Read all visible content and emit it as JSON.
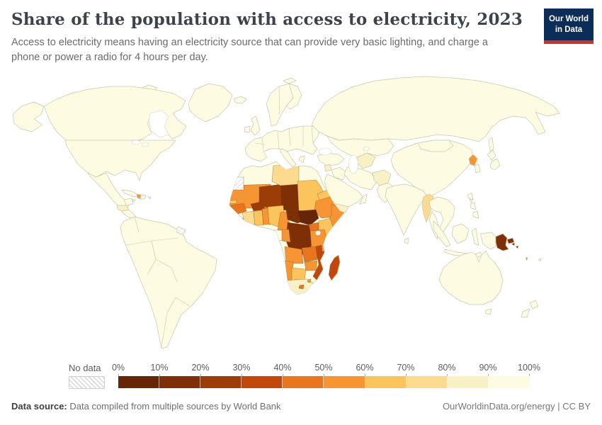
{
  "header": {
    "title": "Share of the population with access to electricity, 2023",
    "subtitle": "Access to electricity means having an electricity source that can provide very basic lighting, and charge a phone or power a radio for 4 hours per day.",
    "logo": {
      "line1": "Our World",
      "line2": "in Data",
      "bg_color": "#0d2d59",
      "accent_color": "#cc3230"
    }
  },
  "legend": {
    "no_data_label": "No data",
    "ticks": [
      "0%",
      "10%",
      "20%",
      "30%",
      "40%",
      "50%",
      "60%",
      "70%",
      "80%",
      "90%",
      "100%"
    ],
    "bin_colors": [
      "#662506",
      "#7e2f05",
      "#9c3d08",
      "#c2470a",
      "#e8761f",
      "#f79433",
      "#fcc45d",
      "#fcda8e",
      "#f8f1c5",
      "#fdfce3"
    ],
    "no_data_pattern": "gray-diagonal-hatch"
  },
  "footer": {
    "source_label": "Data source:",
    "source_text": "Data compiled from multiple sources by World Bank",
    "credit_text": "OurWorldinData.org/energy | CC BY"
  },
  "chart_data": {
    "type": "heatmap",
    "subtype": "world-choropleth-map",
    "title": "Share of the population with access to electricity, 2023",
    "year": 2023,
    "unit": "share of population with access to electricity (%)",
    "legend_position": "bottom",
    "bins": [
      {
        "range": "0-10%",
        "color": "#662506"
      },
      {
        "range": "10-20%",
        "color": "#7e2f05"
      },
      {
        "range": "20-30%",
        "color": "#9c3d08"
      },
      {
        "range": "30-40%",
        "color": "#c2470a"
      },
      {
        "range": "40-50%",
        "color": "#e8761f"
      },
      {
        "range": "50-60%",
        "color": "#f79433"
      },
      {
        "range": "60-70%",
        "color": "#fcc45d"
      },
      {
        "range": "70-80%",
        "color": "#fcda8e"
      },
      {
        "range": "80-90%",
        "color": "#f8f1c5"
      },
      {
        "range": "90-100%",
        "color": "#fdfce3"
      },
      {
        "range": "No data",
        "color": "hatched-gray"
      }
    ],
    "regions_by_bin": {
      "0-10%": [
        "South Sudan"
      ],
      "10-20%": [
        "Chad",
        "Central African Republic",
        "Democratic Republic of Congo",
        "Burundi",
        "Papua New Guinea",
        "Solomon Islands"
      ],
      "20-30%": [
        "Niger",
        "Burkina Faso"
      ],
      "30-40%": [
        "Sierra Leone",
        "Mozambique",
        "Malawi",
        "Madagascar"
      ],
      "40-50%": [
        "Guinea",
        "Liberia",
        "Zambia",
        "Uganda",
        "Lesotho"
      ],
      "50-60%": [
        "Mauritania",
        "Mali",
        "Senegal",
        "Ethiopia",
        "Somalia",
        "Cameroon",
        "Republic of Congo",
        "Angola",
        "Tanzania",
        "Namibia",
        "Zimbabwe",
        "Eswatini",
        "Togo",
        "Benin",
        "North Korea",
        "Haiti",
        "Vanuatu"
      ],
      "60-70%": [
        "Nigeria",
        "Ghana",
        "Sudan",
        "Kenya",
        "Botswana",
        "Eritrea",
        "Gambia"
      ],
      "70-80%": [
        "Libya",
        "Cote d'Ivoire",
        "Myanmar"
      ],
      "80-90%": [
        "Afghanistan",
        "Yemen",
        "Syria",
        "South Africa",
        "Turkmenistan",
        "Guatemala",
        "Honduras"
      ],
      "90-100%": [
        "Most of Europe, the Americas, Asia and Oceania"
      ],
      "No data": [
        "Western Sahara",
        "French Guiana"
      ]
    }
  }
}
